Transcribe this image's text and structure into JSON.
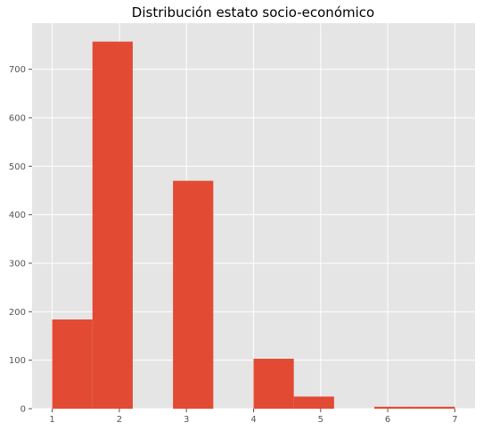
{
  "chart_data": {
    "type": "bar",
    "title": "Distribución estato socio-económico",
    "xlabel": "",
    "ylabel": "",
    "xlim": [
      0.7,
      7.3
    ],
    "ylim": [
      0,
      795
    ],
    "x_ticks": [
      1,
      2,
      3,
      4,
      5,
      6,
      7
    ],
    "y_ticks": [
      0,
      100,
      200,
      300,
      400,
      500,
      600,
      700
    ],
    "grid": true,
    "legend": "none",
    "bins": [
      {
        "start": 1.0,
        "end": 1.6,
        "value": 184
      },
      {
        "start": 1.6,
        "end": 2.2,
        "value": 757
      },
      {
        "start": 2.2,
        "end": 2.8,
        "value": 0
      },
      {
        "start": 2.8,
        "end": 3.4,
        "value": 470
      },
      {
        "start": 3.4,
        "end": 4.0,
        "value": 0
      },
      {
        "start": 4.0,
        "end": 4.6,
        "value": 103
      },
      {
        "start": 4.6,
        "end": 5.2,
        "value": 25
      },
      {
        "start": 5.2,
        "end": 5.8,
        "value": 0
      },
      {
        "start": 5.8,
        "end": 6.4,
        "value": 4
      },
      {
        "start": 6.4,
        "end": 7.0,
        "value": 4
      }
    ],
    "colors": {
      "bar": "#e24a33",
      "plot_background": "#e5e5e5",
      "grid": "#ffffff",
      "tick_text": "#555555"
    }
  }
}
